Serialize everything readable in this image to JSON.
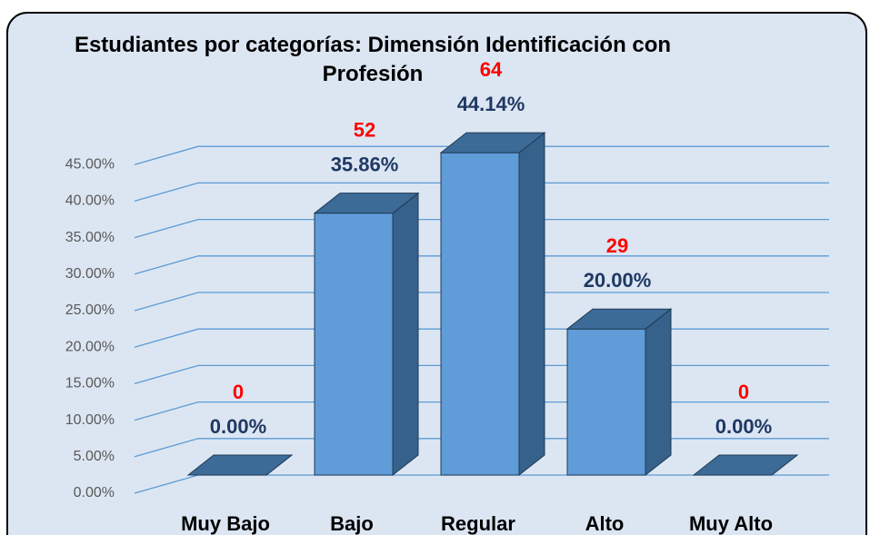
{
  "chart_data": {
    "type": "bar3d",
    "title": "Estudiantes por categorías: Dimensión Identificación con Profesión",
    "categories": [
      "Muy Bajo",
      "Bajo",
      "Regular",
      "Alto",
      "Muy Alto"
    ],
    "values": [
      0,
      35.86,
      44.14,
      20,
      0
    ],
    "value_labels": [
      "0.00%",
      "35.86%",
      "44.14%",
      "20.00%",
      "0.00%"
    ],
    "counts": [
      0,
      52,
      64,
      29,
      0
    ],
    "color": "#5f9cd8",
    "ylim": [
      0,
      50
    ],
    "yticks": [
      {
        "value": 0,
        "label": "0.00%"
      },
      {
        "value": 5,
        "label": "5.00%"
      },
      {
        "value": 10,
        "label": "10.00%"
      },
      {
        "value": 15,
        "label": "15.00%"
      },
      {
        "value": 20,
        "label": "20.00%"
      },
      {
        "value": 25,
        "label": "25.00%"
      },
      {
        "value": 30,
        "label": "30.00%"
      },
      {
        "value": 35,
        "label": "35.00%"
      },
      {
        "value": 40,
        "label": "40.00%"
      },
      {
        "value": 45,
        "label": "45.00%"
      }
    ],
    "grid": true
  }
}
